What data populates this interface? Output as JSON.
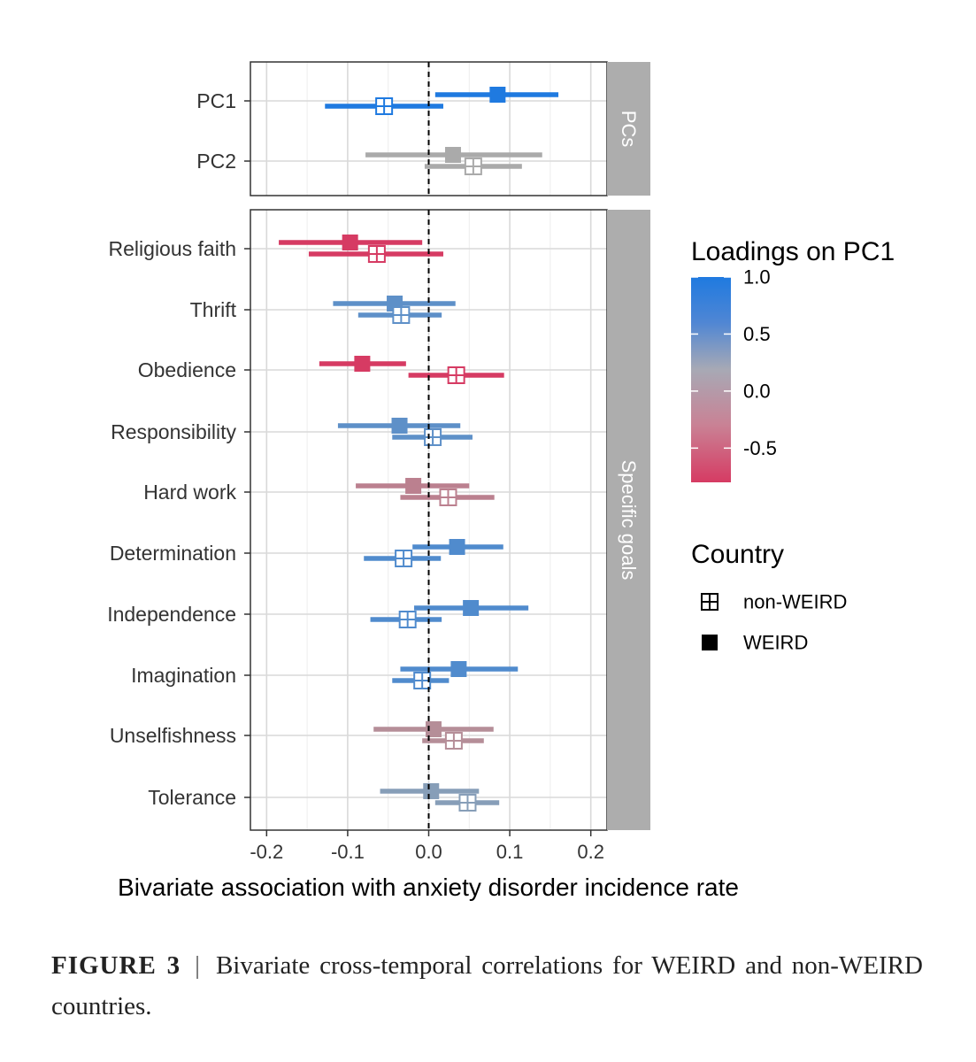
{
  "caption": {
    "label": "FIGURE 3",
    "separator": "|",
    "text": "Bivariate cross-temporal correlations for WEIRD and non-WEIRD countries."
  },
  "chart_data": {
    "type": "forest",
    "xlabel": "Bivariate association with anxiety disorder incidence rate",
    "xlim": [
      -0.22,
      0.22
    ],
    "xticks": [
      -0.2,
      -0.1,
      0.0,
      0.1,
      0.2
    ],
    "xtick_labels": [
      "-0.2",
      "-0.1",
      "0.0",
      "0.1",
      "0.2"
    ],
    "reference_line": 0.0,
    "grid": true,
    "legend_position": "right",
    "color_legend": {
      "title": "Loadings on PC1",
      "ticks": [
        "1.0",
        "0.5",
        "0.0",
        "-0.5"
      ],
      "tick_values": [
        1.0,
        0.5,
        0.0,
        -0.5
      ],
      "range": [
        -0.8,
        1.0
      ],
      "colors": {
        "high": "#1f7ae0",
        "mid": "#aaaaaa",
        "low": "#d63b63"
      }
    },
    "shape_legend": {
      "title": "Country",
      "items": [
        {
          "label": "non-WEIRD",
          "shape": "boxed-cross"
        },
        {
          "label": "WEIRD",
          "shape": "filled-square"
        }
      ]
    },
    "panels": [
      {
        "strip": "PCs",
        "rows": [
          {
            "label": "PC1",
            "loading": 1.0,
            "WEIRD": {
              "est": 0.085,
              "lo": 0.008,
              "hi": 0.16
            },
            "non_WEIRD": {
              "est": -0.055,
              "lo": -0.128,
              "hi": 0.018
            }
          },
          {
            "label": "PC2",
            "loading": 0.0,
            "WEIRD": {
              "est": 0.03,
              "lo": -0.078,
              "hi": 0.14
            },
            "non_WEIRD": {
              "est": 0.055,
              "lo": -0.005,
              "hi": 0.115
            }
          }
        ]
      },
      {
        "strip": "Specific goals",
        "rows": [
          {
            "label": "Religious faith",
            "loading": -0.8,
            "WEIRD": {
              "est": -0.097,
              "lo": -0.185,
              "hi": -0.008
            },
            "non_WEIRD": {
              "est": -0.064,
              "lo": -0.148,
              "hi": 0.018
            }
          },
          {
            "label": "Thrift",
            "loading": 0.55,
            "WEIRD": {
              "est": -0.042,
              "lo": -0.118,
              "hi": 0.033
            },
            "non_WEIRD": {
              "est": -0.034,
              "lo": -0.087,
              "hi": 0.016
            }
          },
          {
            "label": "Obedience",
            "loading": -0.8,
            "WEIRD": {
              "est": -0.082,
              "lo": -0.135,
              "hi": -0.028
            },
            "non_WEIRD": {
              "est": 0.034,
              "lo": -0.025,
              "hi": 0.093
            }
          },
          {
            "label": "Responsibility",
            "loading": 0.55,
            "WEIRD": {
              "est": -0.036,
              "lo": -0.112,
              "hi": 0.039
            },
            "non_WEIRD": {
              "est": 0.005,
              "lo": -0.045,
              "hi": 0.054
            }
          },
          {
            "label": "Hard work",
            "loading": -0.3,
            "WEIRD": {
              "est": -0.019,
              "lo": -0.09,
              "hi": 0.05
            },
            "non_WEIRD": {
              "est": 0.024,
              "lo": -0.035,
              "hi": 0.081
            }
          },
          {
            "label": "Determination",
            "loading": 0.65,
            "WEIRD": {
              "est": 0.035,
              "lo": -0.02,
              "hi": 0.092
            },
            "non_WEIRD": {
              "est": -0.031,
              "lo": -0.08,
              "hi": 0.015
            }
          },
          {
            "label": "Independence",
            "loading": 0.65,
            "WEIRD": {
              "est": 0.052,
              "lo": -0.018,
              "hi": 0.123
            },
            "non_WEIRD": {
              "est": -0.026,
              "lo": -0.072,
              "hi": 0.016
            }
          },
          {
            "label": "Imagination",
            "loading": 0.65,
            "WEIRD": {
              "est": 0.037,
              "lo": -0.035,
              "hi": 0.11
            },
            "non_WEIRD": {
              "est": -0.008,
              "lo": -0.045,
              "hi": 0.025
            }
          },
          {
            "label": "Unselfishness",
            "loading": -0.2,
            "WEIRD": {
              "est": 0.006,
              "lo": -0.068,
              "hi": 0.08
            },
            "non_WEIRD": {
              "est": 0.031,
              "lo": -0.008,
              "hi": 0.068
            }
          },
          {
            "label": "Tolerance",
            "loading": 0.25,
            "WEIRD": {
              "est": 0.003,
              "lo": -0.06,
              "hi": 0.062
            },
            "non_WEIRD": {
              "est": 0.048,
              "lo": 0.008,
              "hi": 0.087
            }
          }
        ]
      }
    ]
  }
}
